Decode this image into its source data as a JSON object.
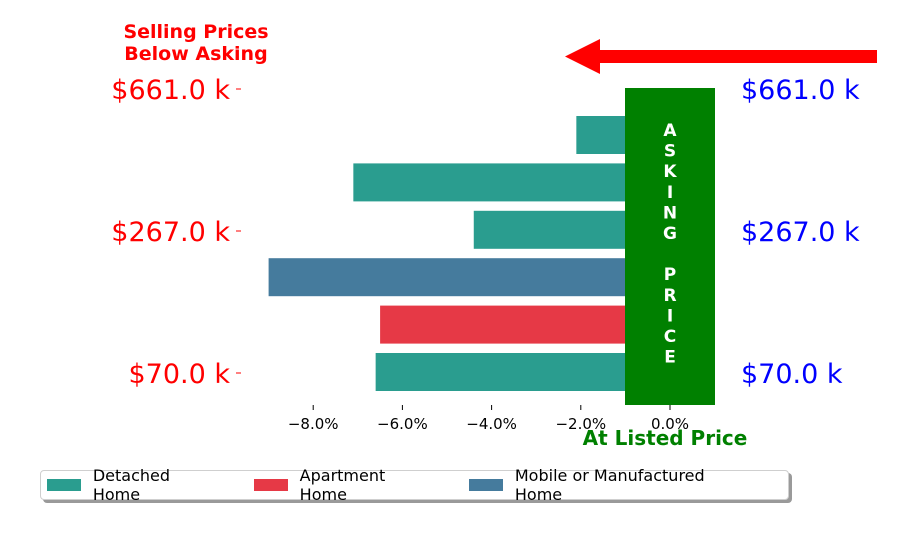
{
  "chart_data": {
    "type": "bar",
    "orientation": "horizontal",
    "annotations": {
      "top_left": [
        "Selling Prices",
        "Below Asking"
      ],
      "bottom": "At Listed Price",
      "band_label": "ASKING PRICE"
    },
    "y_tick_labels_left": [
      "$661.0 k",
      "$267.0 k",
      "$70.0 k"
    ],
    "y_tick_labels_right": [
      "$661.0 k",
      "$267.0 k",
      "$70.0 k"
    ],
    "x_tick_labels": [
      "−8.0%",
      "−6.0%",
      "−4.0%",
      "−2.0%",
      "0.0%"
    ],
    "x_ticks": [
      -8,
      -6,
      -4,
      -2,
      0
    ],
    "xlim": [
      -9.5,
      1.0
    ],
    "bars": [
      {
        "value": -2.1,
        "category": "Detached Home"
      },
      {
        "value": -7.1,
        "category": "Detached Home"
      },
      {
        "value": -4.4,
        "category": "Detached Home"
      },
      {
        "value": -9.0,
        "category": "Mobile or Manufactured Home"
      },
      {
        "value": -6.5,
        "category": "Apartment Home"
      },
      {
        "value": -6.6,
        "category": "Detached Home"
      }
    ],
    "legend": [
      {
        "label": "Detached Home",
        "color": "#2a9d8f"
      },
      {
        "label": "Apartment Home",
        "color": "#e63946"
      },
      {
        "label": "Mobile or Manufactured Home",
        "color": "#457b9d"
      }
    ],
    "legend_position": "bottom",
    "grid": false,
    "colors": {
      "left_labels": "#ff0000",
      "right_labels": "#0000ff",
      "asking_band": "#008000",
      "arrow": "#ff0000",
      "bottom_label": "#008000"
    }
  }
}
